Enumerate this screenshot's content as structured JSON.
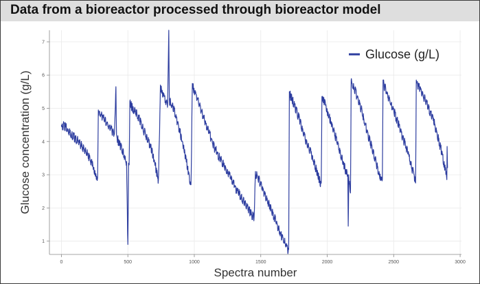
{
  "title": "Data from a bioreactor processed through bioreactor model",
  "chart_data": {
    "type": "line",
    "xlabel": "Spectra number",
    "ylabel": "Glucose concentration (g/L)",
    "xlim": [
      -90,
      3010
    ],
    "ylim": [
      0.6,
      7.35
    ],
    "x_ticks": [
      0,
      500,
      1000,
      1500,
      2000,
      2500,
      3000
    ],
    "x_tick_labels": [
      "0",
      "500",
      "1000",
      "1500",
      "2000",
      "2500",
      "3000"
    ],
    "y_ticks": [
      1,
      2,
      3,
      4,
      5,
      6,
      7
    ],
    "y_tick_labels": [
      "1",
      "2",
      "3",
      "4",
      "5",
      "6",
      "7"
    ],
    "grid": true,
    "legend_position": "top-right",
    "series": [
      {
        "name": "Glucose (g/L)",
        "color": "#2d3d9f",
        "points": [
          [
            0,
            4.5
          ],
          [
            20,
            4.55
          ],
          [
            60,
            4.35
          ],
          [
            120,
            4.1
          ],
          [
            180,
            3.8
          ],
          [
            230,
            3.4
          ],
          [
            265,
            2.95
          ],
          [
            272,
            2.9
          ],
          [
            278,
            4.95
          ],
          [
            310,
            4.8
          ],
          [
            360,
            4.5
          ],
          [
            400,
            4.3
          ],
          [
            410,
            5.65
          ],
          [
            415,
            4.2
          ],
          [
            450,
            3.9
          ],
          [
            490,
            3.4
          ],
          [
            500,
            0.9
          ],
          [
            505,
            3.35
          ],
          [
            510,
            3.3
          ],
          [
            515,
            5.2
          ],
          [
            540,
            5.05
          ],
          [
            580,
            4.8
          ],
          [
            630,
            4.3
          ],
          [
            680,
            3.8
          ],
          [
            715,
            3.2
          ],
          [
            730,
            2.85
          ],
          [
            745,
            5.7
          ],
          [
            770,
            5.45
          ],
          [
            800,
            5.2
          ],
          [
            808,
            7.35
          ],
          [
            812,
            5.3
          ],
          [
            850,
            5.0
          ],
          [
            890,
            4.4
          ],
          [
            935,
            3.6
          ],
          [
            960,
            3.05
          ],
          [
            975,
            2.7
          ],
          [
            985,
            5.75
          ],
          [
            1010,
            5.5
          ],
          [
            1060,
            4.9
          ],
          [
            1100,
            4.45
          ],
          [
            1150,
            3.9
          ],
          [
            1200,
            3.5
          ],
          [
            1260,
            3.1
          ],
          [
            1320,
            2.6
          ],
          [
            1380,
            2.2
          ],
          [
            1420,
            1.95
          ],
          [
            1450,
            1.75
          ],
          [
            1460,
            3.1
          ],
          [
            1490,
            2.9
          ],
          [
            1530,
            2.5
          ],
          [
            1570,
            2.1
          ],
          [
            1620,
            1.6
          ],
          [
            1660,
            1.2
          ],
          [
            1700,
            0.85
          ],
          [
            1710,
            0.75
          ],
          [
            1715,
            5.5
          ],
          [
            1740,
            5.3
          ],
          [
            1790,
            4.75
          ],
          [
            1830,
            4.2
          ],
          [
            1880,
            3.7
          ],
          [
            1920,
            3.2
          ],
          [
            1955,
            2.75
          ],
          [
            1960,
            5.35
          ],
          [
            1985,
            5.2
          ],
          [
            2030,
            4.6
          ],
          [
            2080,
            4.0
          ],
          [
            2120,
            3.4
          ],
          [
            2155,
            3.0
          ],
          [
            2158,
            1.45
          ],
          [
            2162,
            3.0
          ],
          [
            2170,
            2.65
          ],
          [
            2175,
            2.45
          ],
          [
            2180,
            5.85
          ],
          [
            2210,
            5.6
          ],
          [
            2260,
            5.0
          ],
          [
            2300,
            4.35
          ],
          [
            2350,
            3.7
          ],
          [
            2390,
            3.1
          ],
          [
            2415,
            2.85
          ],
          [
            2420,
            5.85
          ],
          [
            2450,
            5.5
          ],
          [
            2500,
            5.0
          ],
          [
            2560,
            4.3
          ],
          [
            2610,
            3.7
          ],
          [
            2650,
            3.1
          ],
          [
            2665,
            2.75
          ],
          [
            2670,
            5.85
          ],
          [
            2700,
            5.65
          ],
          [
            2750,
            5.2
          ],
          [
            2800,
            4.7
          ],
          [
            2840,
            4.1
          ],
          [
            2880,
            3.4
          ],
          [
            2895,
            3.1
          ],
          [
            2900,
            2.85
          ],
          [
            2902,
            3.85
          ],
          [
            2905,
            3.2
          ]
        ]
      }
    ]
  }
}
